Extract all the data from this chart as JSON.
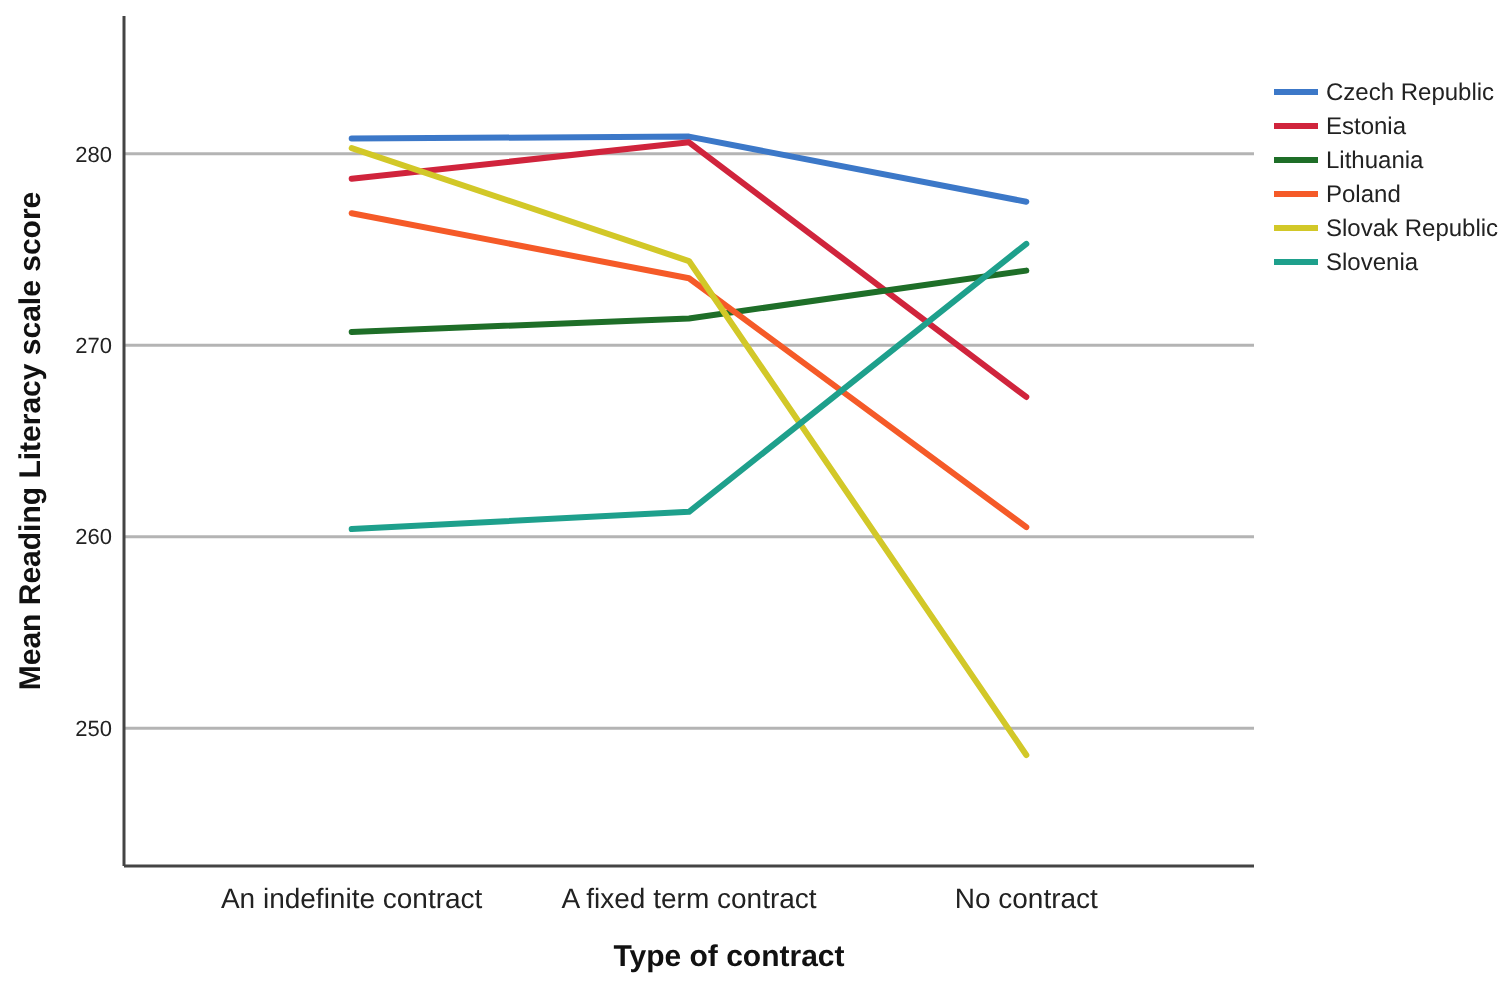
{
  "chart_data": {
    "type": "line",
    "xlabel": "Type of contract",
    "ylabel": "Mean Reading Literacy scale score",
    "categories": [
      "An indefinite contract",
      "A fixed term contract",
      "No contract"
    ],
    "series": [
      {
        "name": "Czech Republic",
        "color": "#3c78c8",
        "values": [
          280.8,
          280.9,
          277.5
        ]
      },
      {
        "name": "Estonia",
        "color": "#d0243c",
        "values": [
          278.7,
          280.6,
          267.3
        ]
      },
      {
        "name": "Lithuania",
        "color": "#1e6e28",
        "values": [
          270.7,
          271.4,
          273.9
        ]
      },
      {
        "name": "Poland",
        "color": "#f55a28",
        "values": [
          276.9,
          273.5,
          260.5
        ]
      },
      {
        "name": "Slovak Republic",
        "color": "#d2c828",
        "values": [
          280.3,
          274.4,
          248.6
        ]
      },
      {
        "name": "Slovenia",
        "color": "#1ea08c",
        "values": [
          260.4,
          261.3,
          275.3
        ]
      }
    ],
    "ylim": [
      242.8,
      287.2
    ],
    "yticks": [
      250,
      260,
      270,
      280
    ],
    "grid": "y",
    "legend": "top right",
    "marker": "none",
    "line_style": "solid"
  }
}
